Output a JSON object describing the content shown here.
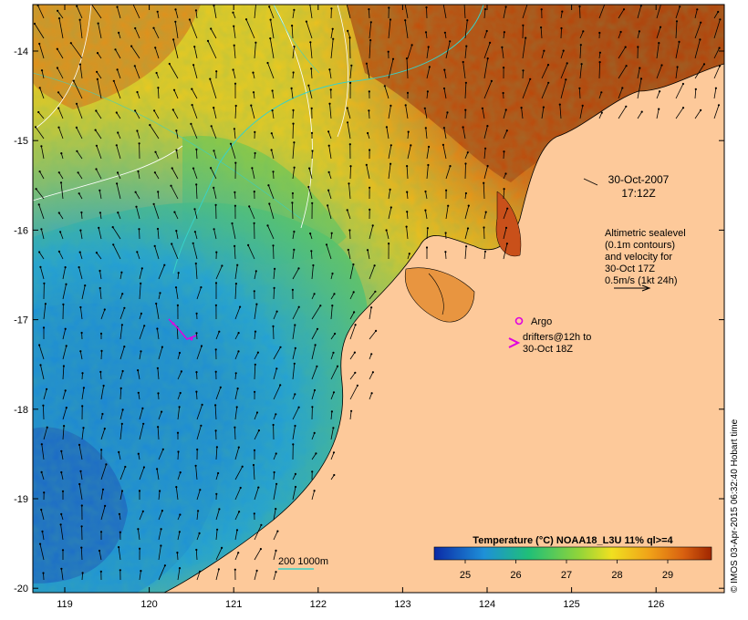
{
  "map": {
    "date": "30-Oct-2007",
    "time": "17:12Z",
    "altimetry_note": [
      "Altimetric sealevel",
      "(0.1m contours)",
      "and velocity for",
      "30-Oct 17Z",
      "0.5m/s (1kt 24h)"
    ],
    "argo_label": "Argo",
    "drifters_label": [
      "drifters@12h to",
      "30-Oct 18Z"
    ],
    "isobath_label": "200  1000m",
    "colorbar_title": "Temperature (°C) NOAA18_L3U 11% ql>=4",
    "colorbar_ticks": [
      "25",
      "26",
      "27",
      "28",
      "29"
    ],
    "credit": "© IMOS 03-Apr-2015 06:32:40 Hobart time",
    "lon_ticks": [
      "119",
      "120",
      "121",
      "122",
      "123",
      "124",
      "125",
      "126"
    ],
    "lat_ticks": [
      "-14",
      "-15",
      "-16",
      "-17",
      "-18",
      "-19",
      "-20"
    ],
    "colors": {
      "land": "#fdc99a",
      "warm": "#a83200",
      "cool": "#1e8fd6",
      "argo": "#e000e0",
      "isobath": "#38d2c8"
    }
  }
}
